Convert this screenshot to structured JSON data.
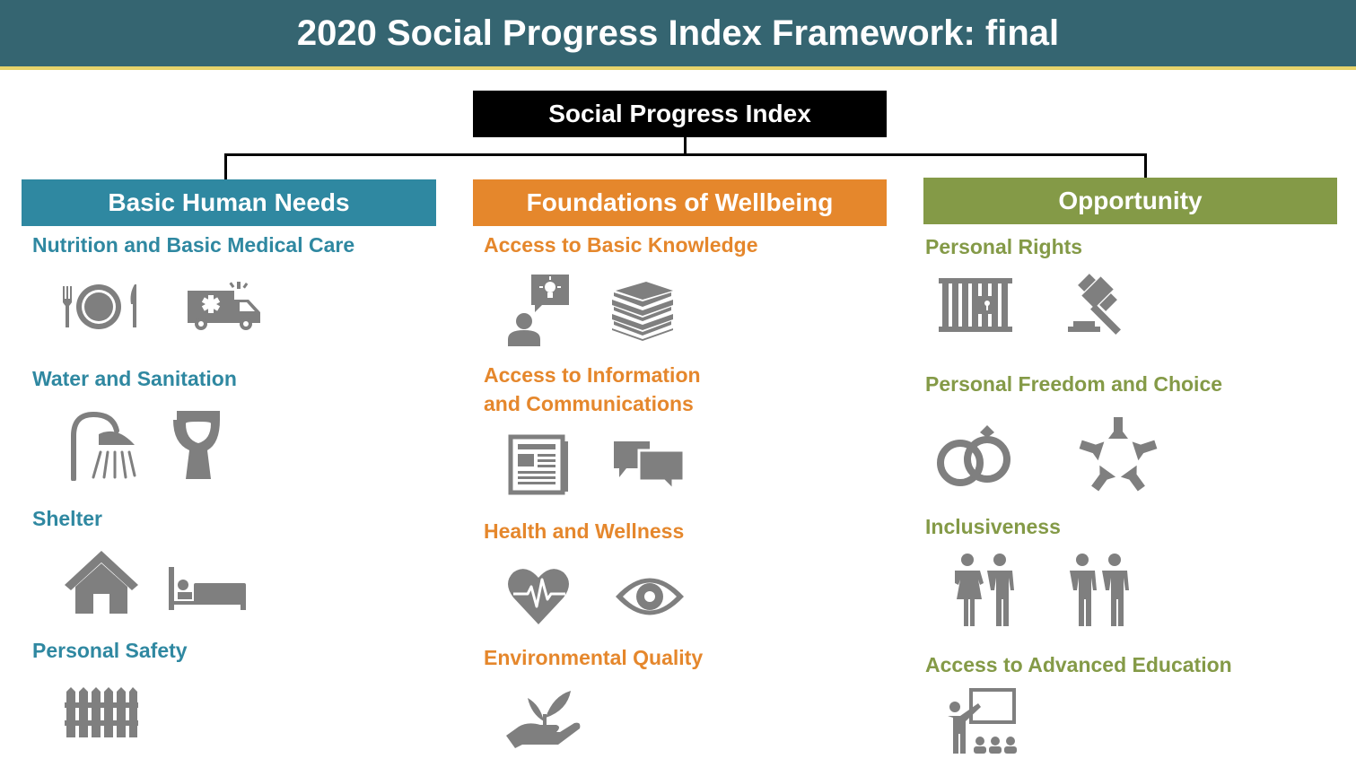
{
  "title": "2020 Social Progress Index Framework: final",
  "root": "Social Progress Index",
  "colors": {
    "banner": "#356571",
    "banner_underline": "#e6d36a",
    "basic_human_needs": "#2f88a1",
    "foundations_of_wellbeing": "#e5872c",
    "opportunity": "#849a47",
    "icon_gray": "#7f7f7f"
  },
  "dimensions": [
    {
      "name": "Basic Human Needs",
      "components": [
        {
          "name": "Nutrition and Basic Medical Care",
          "icons": [
            "plate-cutlery-icon",
            "ambulance-icon"
          ]
        },
        {
          "name": "Water and Sanitation",
          "icons": [
            "shower-icon",
            "toilet-icon"
          ]
        },
        {
          "name": "Shelter",
          "icons": [
            "house-icon",
            "bed-icon"
          ]
        },
        {
          "name": "Personal Safety",
          "icons": [
            "fence-icon"
          ]
        }
      ]
    },
    {
      "name": "Foundations of Wellbeing",
      "components": [
        {
          "name": "Access to Basic Knowledge",
          "icons": [
            "person-idea-icon",
            "books-icon"
          ]
        },
        {
          "name": "Access to Information and Communications",
          "line1": "Access to Information",
          "line2": "and Communications",
          "icons": [
            "newspaper-icon",
            "chat-bubbles-icon"
          ]
        },
        {
          "name": "Health and Wellness",
          "icons": [
            "heart-pulse-icon",
            "eye-icon"
          ]
        },
        {
          "name": "Environmental Quality",
          "icons": [
            "hand-plant-icon"
          ]
        }
      ]
    },
    {
      "name": "Opportunity",
      "components": [
        {
          "name": "Personal Rights",
          "icons": [
            "jail-bars-icon",
            "gavel-icon"
          ]
        },
        {
          "name": "Personal Freedom and Choice",
          "icons": [
            "wedding-rings-icon",
            "hands-circle-icon"
          ]
        },
        {
          "name": "Inclusiveness",
          "icons": [
            "couple-man-woman-icon",
            "couple-two-men-icon"
          ]
        },
        {
          "name": "Access to Advanced Education",
          "icons": [
            "teacher-classroom-icon"
          ]
        }
      ]
    }
  ]
}
